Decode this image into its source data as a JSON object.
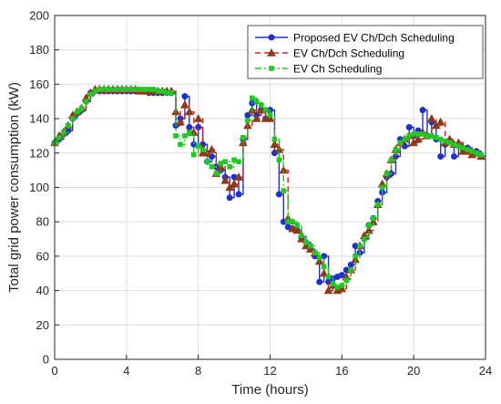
{
  "chart_data": {
    "type": "line",
    "title": "",
    "xlabel": "Time (hours)",
    "ylabel": "Total grid power consumption (kW)",
    "xlim": [
      0,
      24
    ],
    "ylim": [
      0,
      200
    ],
    "xticks": [
      0,
      4,
      8,
      12,
      16,
      20,
      24
    ],
    "yticks": [
      0,
      20,
      40,
      60,
      80,
      100,
      120,
      140,
      160,
      180,
      200
    ],
    "grid": true,
    "legend_position": "top-right",
    "series": [
      {
        "name": "Proposed EV Ch/Dch Scheduling",
        "color": "#1f2fd1",
        "line_style": "solid",
        "marker": "circle",
        "step": true,
        "x": [
          0,
          0.25,
          0.5,
          0.75,
          1,
          1.25,
          1.5,
          1.75,
          2,
          2.25,
          2.5,
          2.75,
          3,
          3.25,
          3.5,
          3.75,
          4,
          4.25,
          4.5,
          4.75,
          5,
          5.25,
          5.5,
          5.75,
          6,
          6.25,
          6.5,
          6.75,
          7,
          7.25,
          7.5,
          7.75,
          8,
          8.25,
          8.5,
          8.75,
          9,
          9.25,
          9.5,
          9.75,
          10,
          10.25,
          10.5,
          10.75,
          11,
          11.25,
          11.5,
          11.75,
          12,
          12.25,
          12.5,
          12.75,
          13,
          13.25,
          13.5,
          13.75,
          14,
          14.25,
          14.5,
          14.75,
          15,
          15.25,
          15.5,
          15.75,
          16,
          16.25,
          16.5,
          16.75,
          17,
          17.25,
          17.5,
          17.75,
          18,
          18.25,
          18.5,
          18.75,
          19,
          19.25,
          19.5,
          19.75,
          20,
          20.25,
          20.5,
          20.75,
          21,
          21.25,
          21.5,
          21.75,
          22,
          22.25,
          22.5,
          22.75,
          23,
          23.25,
          23.5,
          23.75
        ],
        "y": [
          126,
          128,
          131,
          133,
          140,
          143,
          145,
          150,
          155,
          156,
          156,
          156,
          156,
          156,
          156,
          156,
          156,
          156,
          156,
          156,
          156,
          155,
          155,
          155,
          155,
          155,
          155,
          136,
          140,
          153,
          135,
          125,
          135,
          125,
          115,
          118,
          112,
          110,
          106,
          94,
          106,
          96,
          128,
          142,
          149,
          142,
          145,
          140,
          145,
          120,
          96,
          80,
          77,
          76,
          75,
          71,
          68,
          64,
          60,
          45,
          60,
          45,
          47,
          48,
          49,
          52,
          55,
          66,
          62,
          70,
          78,
          82,
          92,
          97,
          106,
          108,
          118,
          128,
          124,
          135,
          130,
          133,
          145,
          130,
          138,
          128,
          118,
          125,
          127,
          118,
          125,
          122,
          123,
          120,
          121,
          118
        ],
        "values_note_removed": true
      },
      {
        "name": "EV Ch/Dch Scheduling",
        "color": "#d32020",
        "line_style": "dashed",
        "marker": "triangle",
        "marker_color": "#8c3a1a",
        "step": true,
        "x": [
          0,
          0.25,
          0.5,
          0.75,
          1,
          1.25,
          1.5,
          1.75,
          2,
          2.25,
          2.5,
          2.75,
          3,
          3.25,
          3.5,
          3.75,
          4,
          4.25,
          4.5,
          4.75,
          5,
          5.25,
          5.5,
          5.75,
          6,
          6.25,
          6.5,
          6.75,
          7,
          7.25,
          7.5,
          7.75,
          8,
          8.25,
          8.5,
          8.75,
          9,
          9.25,
          9.5,
          9.75,
          10,
          10.25,
          10.5,
          10.75,
          11,
          11.25,
          11.5,
          11.75,
          12,
          12.25,
          12.5,
          12.75,
          13,
          13.25,
          13.5,
          13.75,
          14,
          14.25,
          14.5,
          14.75,
          15,
          15.25,
          15.5,
          15.75,
          16,
          16.25,
          16.5,
          16.75,
          17,
          17.25,
          17.5,
          17.75,
          18,
          18.25,
          18.5,
          18.75,
          19,
          19.25,
          19.5,
          19.75,
          20,
          20.25,
          20.5,
          20.75,
          21,
          21.25,
          21.5,
          21.75,
          22,
          22.25,
          22.5,
          22.75,
          23,
          23.25,
          23.5,
          23.75
        ],
        "y": [
          126,
          130,
          132,
          136,
          142,
          144,
          146,
          152,
          155,
          157,
          157,
          157,
          157,
          157,
          157,
          157,
          157,
          157,
          157,
          156,
          156,
          156,
          156,
          156,
          156,
          156,
          156,
          144,
          138,
          148,
          144,
          132,
          140,
          120,
          120,
          122,
          108,
          112,
          104,
          100,
          102,
          106,
          126,
          136,
          145,
          140,
          145,
          140,
          140,
          125,
          122,
          110,
          82,
          76,
          75,
          70,
          66,
          64,
          62,
          57,
          50,
          40,
          43,
          40,
          41,
          48,
          52,
          58,
          66,
          72,
          75,
          80,
          90,
          102,
          108,
          116,
          122,
          126,
          128,
          130,
          126,
          128,
          132,
          130,
          140,
          136,
          138,
          126,
          128,
          125,
          126,
          121,
          121,
          119,
          120,
          118
        ]
      },
      {
        "name": "EV Ch Scheduling",
        "color": "#22c722",
        "line_style": "dashdot",
        "marker": "square",
        "step": true,
        "x": [
          0,
          0.25,
          0.5,
          0.75,
          1,
          1.25,
          1.5,
          1.75,
          2,
          2.25,
          2.5,
          2.75,
          3,
          3.25,
          3.5,
          3.75,
          4,
          4.25,
          4.5,
          4.75,
          5,
          5.25,
          5.5,
          5.75,
          6,
          6.25,
          6.5,
          6.75,
          7,
          7.25,
          7.5,
          7.75,
          8,
          8.25,
          8.5,
          8.75,
          9,
          9.25,
          9.5,
          9.75,
          10,
          10.25,
          10.5,
          10.75,
          11,
          11.25,
          11.5,
          11.75,
          12,
          12.25,
          12.5,
          12.75,
          13,
          13.25,
          13.5,
          13.75,
          14,
          14.25,
          14.5,
          14.75,
          15,
          15.25,
          15.5,
          15.75,
          16,
          16.25,
          16.5,
          16.75,
          17,
          17.25,
          17.5,
          17.75,
          18,
          18.25,
          18.5,
          18.75,
          19,
          19.25,
          19.5,
          19.75,
          20,
          20.25,
          20.5,
          20.75,
          21,
          21.25,
          21.5,
          21.75,
          22,
          22.25,
          22.5,
          22.75,
          23,
          23.25,
          23.5,
          23.75
        ],
        "y": [
          126,
          129,
          132,
          136,
          140,
          144,
          146,
          150,
          154,
          156,
          157,
          157,
          157,
          157,
          157,
          157,
          157,
          157,
          157,
          157,
          157,
          157,
          157,
          156,
          156,
          155,
          155,
          130,
          125,
          130,
          132,
          119,
          124,
          122,
          115,
          112,
          108,
          114,
          115,
          112,
          116,
          115,
          129,
          139,
          152,
          150,
          148,
          145,
          142,
          128,
          116,
          98,
          80,
          80,
          78,
          72,
          68,
          66,
          62,
          59,
          54,
          48,
          44,
          42,
          43,
          46,
          52,
          60,
          66,
          70,
          78,
          82,
          90,
          100,
          108,
          116,
          122,
          126,
          128,
          130,
          131,
          131,
          131,
          130,
          130,
          129,
          128,
          127,
          126,
          125,
          124,
          123,
          122,
          121,
          120,
          119
        ]
      }
    ]
  }
}
